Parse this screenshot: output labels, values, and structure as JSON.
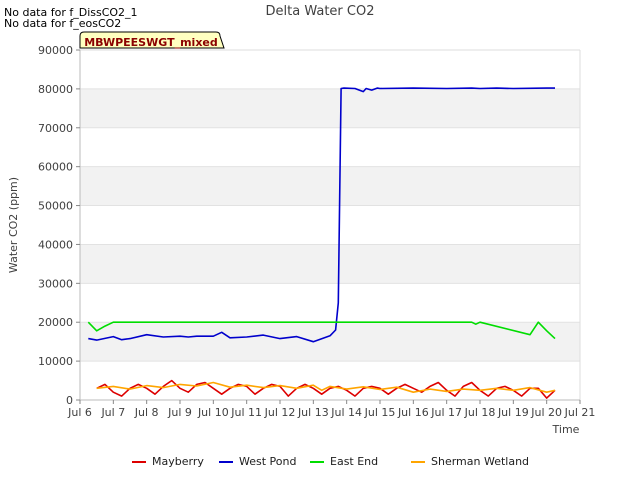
{
  "notes": [
    "No data for f_DissCO2_1",
    "No data for f_eosCO2"
  ],
  "badge": "MBWPEESWGT_mixed",
  "chart_data": {
    "type": "line",
    "title": "Delta Water CO2",
    "xlabel": "Time",
    "ylabel": "Water CO2 (ppm)",
    "xlim": [
      "2023-07-06",
      "2023-07-21"
    ],
    "ylim": [
      0,
      90000
    ],
    "x_ticks": [
      "Jul 6",
      "Jul 7",
      "Jul 8",
      "Jul 9",
      "Jul 10",
      "Jul 11",
      "Jul 12",
      "Jul 13",
      "Jul 14",
      "Jul 15",
      "Jul 16",
      "Jul 17",
      "Jul 18",
      "Jul 19",
      "Jul 20",
      "Jul 21"
    ],
    "y_ticks": [
      "0",
      "10000",
      "20000",
      "30000",
      "40000",
      "50000",
      "60000",
      "70000",
      "80000",
      "90000"
    ],
    "grid": "horizontal bands",
    "legend_position": "bottom",
    "series": [
      {
        "name": "Mayberry",
        "color": "#dd0000",
        "x": [
          "2023-07-06 12:00",
          "2023-07-06 18:00",
          "2023-07-07 00:00",
          "2023-07-07 06:00",
          "2023-07-07 12:00",
          "2023-07-07 18:00",
          "2023-07-08 00:00",
          "2023-07-08 06:00",
          "2023-07-08 12:00",
          "2023-07-08 18:00",
          "2023-07-09 00:00",
          "2023-07-09 06:00",
          "2023-07-09 12:00",
          "2023-07-09 18:00",
          "2023-07-10 00:00",
          "2023-07-10 06:00",
          "2023-07-10 12:00",
          "2023-07-10 18:00",
          "2023-07-11 00:00",
          "2023-07-11 06:00",
          "2023-07-11 12:00",
          "2023-07-11 18:00",
          "2023-07-12 00:00",
          "2023-07-12 06:00",
          "2023-07-12 12:00",
          "2023-07-12 18:00",
          "2023-07-13 00:00",
          "2023-07-13 06:00",
          "2023-07-13 12:00",
          "2023-07-13 18:00",
          "2023-07-14 00:00",
          "2023-07-14 06:00",
          "2023-07-14 12:00",
          "2023-07-14 18:00",
          "2023-07-15 00:00",
          "2023-07-15 06:00",
          "2023-07-15 12:00",
          "2023-07-15 18:00",
          "2023-07-16 00:00",
          "2023-07-16 06:00",
          "2023-07-16 12:00",
          "2023-07-16 18:00",
          "2023-07-17 00:00",
          "2023-07-17 06:00",
          "2023-07-17 12:00",
          "2023-07-17 18:00",
          "2023-07-18 00:00",
          "2023-07-18 06:00",
          "2023-07-18 12:00",
          "2023-07-18 18:00",
          "2023-07-19 00:00",
          "2023-07-19 06:00",
          "2023-07-19 12:00",
          "2023-07-19 18:00",
          "2023-07-20 00:00",
          "2023-07-20 06:00"
        ],
        "values": [
          3000,
          4000,
          2000,
          1000,
          3000,
          4000,
          3000,
          1500,
          3500,
          5000,
          3000,
          2000,
          4000,
          4500,
          3000,
          1500,
          3000,
          4000,
          3500,
          1500,
          3000,
          4000,
          3500,
          1000,
          3000,
          4000,
          3000,
          1500,
          3000,
          3500,
          2500,
          1000,
          3000,
          3500,
          3000,
          1500,
          3000,
          4000,
          3000,
          2000,
          3500,
          4500,
          2500,
          1000,
          3500,
          4500,
          2500,
          1000,
          3000,
          3500,
          2500,
          1000,
          3000,
          3000,
          500,
          2500
        ]
      },
      {
        "name": "West Pond",
        "color": "#0000cc",
        "x": [
          "2023-07-06 06:00",
          "2023-07-06 12:00",
          "2023-07-07 00:00",
          "2023-07-07 06:00",
          "2023-07-07 12:00",
          "2023-07-08 00:00",
          "2023-07-08 12:00",
          "2023-07-09 00:00",
          "2023-07-09 06:00",
          "2023-07-09 12:00",
          "2023-07-10 00:00",
          "2023-07-10 06:00",
          "2023-07-10 12:00",
          "2023-07-11 00:00",
          "2023-07-11 12:00",
          "2023-07-12 00:00",
          "2023-07-12 12:00",
          "2023-07-13 00:00",
          "2023-07-13 12:00",
          "2023-07-13 16:00",
          "2023-07-13 18:00",
          "2023-07-13 20:00",
          "2023-07-13 22:00",
          "2023-07-14 06:00",
          "2023-07-14 12:00",
          "2023-07-14 14:00",
          "2023-07-14 18:00",
          "2023-07-14 22:00",
          "2023-07-15 00:00",
          "2023-07-16 00:00",
          "2023-07-17 00:00",
          "2023-07-17 18:00",
          "2023-07-18 00:00",
          "2023-07-18 12:00",
          "2023-07-19 00:00",
          "2023-07-20 00:00",
          "2023-07-20 06:00"
        ],
        "values": [
          15800,
          15400,
          16300,
          15500,
          15800,
          16800,
          16200,
          16400,
          16200,
          16400,
          16400,
          17400,
          16000,
          16200,
          16700,
          15800,
          16300,
          15000,
          16500,
          18000,
          25000,
          80100,
          80200,
          80100,
          79300,
          80100,
          79700,
          80200,
          80100,
          80200,
          80100,
          80200,
          80100,
          80200,
          80100,
          80200,
          80200
        ]
      },
      {
        "name": "East End",
        "color": "#00dd00",
        "x": [
          "2023-07-06 06:00",
          "2023-07-06 12:00",
          "2023-07-06 18:00",
          "2023-07-07 00:00",
          "2023-07-08 00:00",
          "2023-07-10 00:00",
          "2023-07-13 00:00",
          "2023-07-15 00:00",
          "2023-07-17 18:00",
          "2023-07-17 21:00",
          "2023-07-18 00:00",
          "2023-07-19 12:00",
          "2023-07-19 18:00",
          "2023-07-20 00:00",
          "2023-07-20 06:00"
        ],
        "values": [
          20000,
          17800,
          19000,
          20000,
          20000,
          20000,
          20000,
          20000,
          20000,
          19500,
          20000,
          16800,
          20000,
          17800,
          15800
        ]
      },
      {
        "name": "Sherman Wetland",
        "color": "#ffa500",
        "x": [
          "2023-07-06 12:00",
          "2023-07-07 00:00",
          "2023-07-07 12:00",
          "2023-07-08 00:00",
          "2023-07-08 12:00",
          "2023-07-09 00:00",
          "2023-07-09 12:00",
          "2023-07-10 00:00",
          "2023-07-10 12:00",
          "2023-07-11 00:00",
          "2023-07-11 12:00",
          "2023-07-12 00:00",
          "2023-07-12 12:00",
          "2023-07-13 00:00",
          "2023-07-13 06:00",
          "2023-07-13 12:00",
          "2023-07-14 00:00",
          "2023-07-14 12:00",
          "2023-07-15 00:00",
          "2023-07-15 12:00",
          "2023-07-16 00:00",
          "2023-07-16 12:00",
          "2023-07-17 00:00",
          "2023-07-17 12:00",
          "2023-07-18 00:00",
          "2023-07-18 12:00",
          "2023-07-19 00:00",
          "2023-07-19 12:00",
          "2023-07-20 00:00",
          "2023-07-20 06:00"
        ],
        "values": [
          3000,
          3500,
          2800,
          3700,
          3200,
          4000,
          3600,
          4500,
          3300,
          3800,
          3200,
          3700,
          3000,
          3800,
          2500,
          3500,
          2800,
          3400,
          2700,
          3300,
          2000,
          2800,
          2200,
          2800,
          2500,
          3000,
          2500,
          3200,
          2000,
          2500
        ]
      }
    ]
  }
}
